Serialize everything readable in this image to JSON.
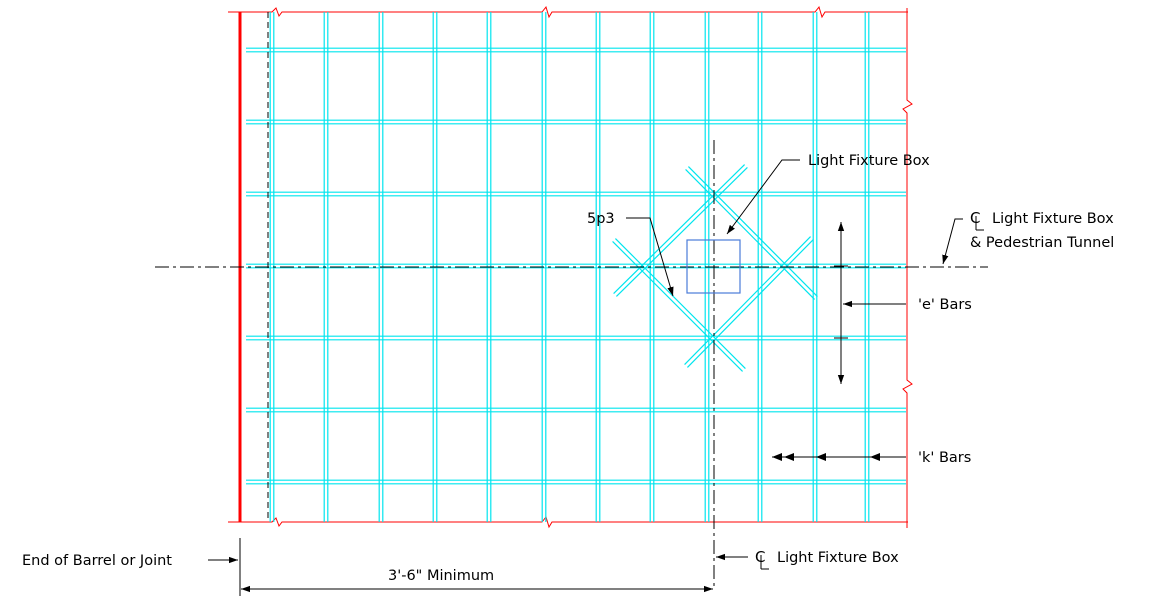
{
  "labels": {
    "light_fixture_box": "Light Fixture Box",
    "bar_5p3": "5p3",
    "cl_light_fixture_box_line1": "Light Fixture Box",
    "cl_light_fixture_box_line2": "& Pedestrian Tunnel",
    "e_bars": "'e' Bars",
    "k_bars": "'k' Bars",
    "end_of_barrel": "End of Barrel or Joint",
    "cl_light_fixture_box_bottom": "Light Fixture Box",
    "dimension": "3'-6\" Minimum"
  },
  "colors": {
    "rebar": "#00e5ee",
    "slab_edge": "#ff0000",
    "fixture_box": "#4a7bd8",
    "annotation": "#000000"
  }
}
